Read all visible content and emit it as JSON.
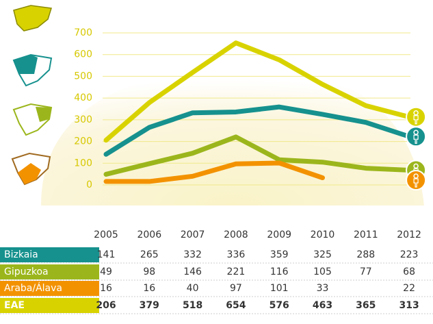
{
  "chart_data": {
    "type": "line",
    "categories": [
      "2005",
      "2006",
      "2007",
      "2008",
      "2009",
      "2010",
      "2011",
      "2012"
    ],
    "series": [
      {
        "name": "Bizkaia",
        "color": "#16918e",
        "values": [
          141,
          265,
          332,
          336,
          359,
          325,
          288,
          223
        ]
      },
      {
        "name": "Gipuzkoa",
        "color": "#9bb61c",
        "values": [
          49,
          98,
          146,
          221,
          116,
          105,
          77,
          68
        ]
      },
      {
        "name": "Araba/Álava",
        "color": "#f39200",
        "values": [
          16,
          16,
          40,
          97,
          101,
          33,
          null,
          22
        ]
      },
      {
        "name": "EAE",
        "color": "#d8d300",
        "values": [
          206,
          379,
          518,
          654,
          576,
          463,
          365,
          313
        ]
      }
    ],
    "ylim": [
      0,
      700
    ],
    "yticks": [
      0,
      100,
      200,
      300,
      400,
      500,
      600,
      700
    ],
    "grid": true
  }
}
